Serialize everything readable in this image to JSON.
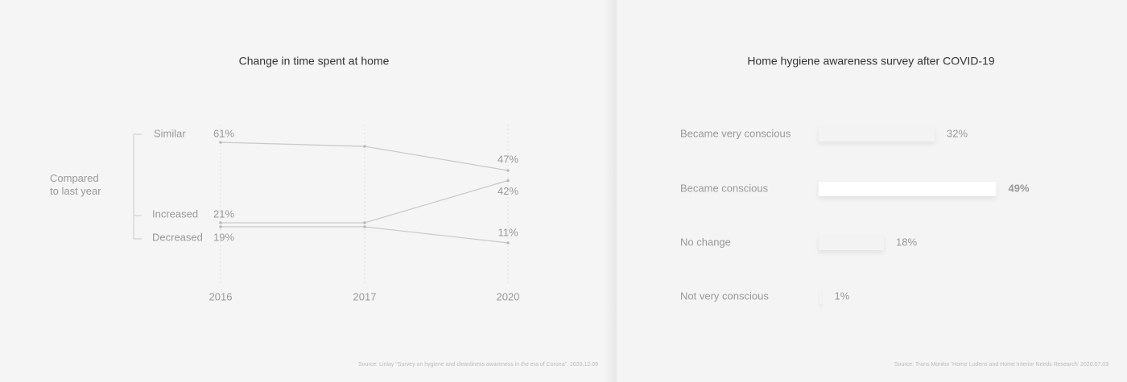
{
  "chart_data": [
    {
      "type": "line",
      "title": "Change in time spent at home",
      "group_label": "Compared to last year",
      "categories": [
        "2016",
        "2017",
        "2020"
      ],
      "series": [
        {
          "name": "Similar",
          "color": "#c9c9c9",
          "values": [
            61,
            59,
            47
          ],
          "value_labels": [
            "61%",
            null,
            "47%"
          ]
        },
        {
          "name": "Increased",
          "color": "#c9c9c9",
          "values": [
            21,
            21,
            42
          ],
          "value_labels": [
            "21%",
            null,
            "42%"
          ]
        },
        {
          "name": "Decreased",
          "color": "#c9c9c9",
          "values": [
            19,
            19,
            11
          ],
          "value_labels": [
            "19%",
            null,
            "11%"
          ]
        }
      ],
      "source": "Source: Linlay \"Survey on hygiene and cleanliness awareness in the era of Corona\". 2020.12.09"
    },
    {
      "type": "hbar",
      "title": "Home hygiene awareness survey after COVID-19",
      "categories": [
        "Became very conscious",
        "Became conscious",
        "No change",
        "Not very conscious"
      ],
      "values": [
        32,
        49,
        18,
        1
      ],
      "value_labels": [
        "32%",
        "49%",
        "18%",
        "1%"
      ],
      "colors": [
        "#f3f3f3",
        "#ffffff",
        "#f3f3f3",
        "#f3f3f3"
      ],
      "source": "Source: Trans Monitor 'Home Ludens and Home Interior Needs Research' 2020.07.03"
    }
  ]
}
